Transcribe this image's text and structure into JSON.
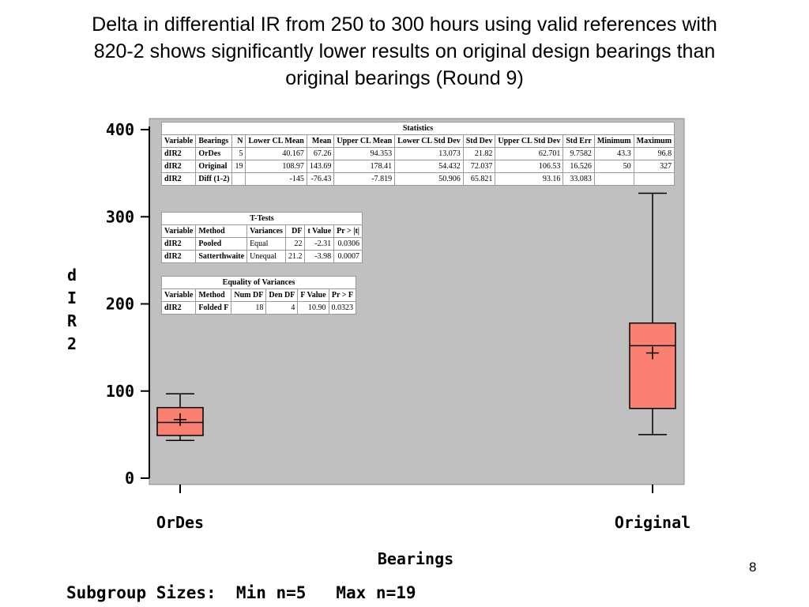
{
  "title_lines": [
    "Delta in differential IR from 250 to 300 hours using valid references with",
    "820-2 shows significantly lower results on original design bearings than",
    "original bearings (Round 9)"
  ],
  "page_number": "8",
  "footer": "Subgroup Sizes:  Min n=5   Max n=19",
  "chart_data": {
    "type": "box",
    "title": "",
    "xlabel": "Bearings",
    "ylabel_chars": [
      "d",
      "I",
      "R",
      "2"
    ],
    "categories": [
      "OrDes",
      "Original"
    ],
    "ylim": [
      0,
      400
    ],
    "yticks": [
      0,
      100,
      200,
      300,
      400
    ],
    "grid": false,
    "boxes": [
      {
        "category": "OrDes",
        "min": 43.3,
        "q1": 49,
        "median": 64,
        "q3": 81,
        "max": 96.8,
        "mean": 67.26
      },
      {
        "category": "Original",
        "min": 50,
        "q1": 80,
        "median": 152,
        "q3": 178,
        "max": 327,
        "mean": 143.69
      }
    ],
    "colors": {
      "box_fill": "#fa8072",
      "plot_bg": "#c0c0c0"
    }
  },
  "tables": {
    "statistics": {
      "caption": "Statistics",
      "headers": [
        "Variable",
        "Bearings",
        "N",
        "Lower CL Mean",
        "Mean",
        "Upper CL Mean",
        "Lower CL Std Dev",
        "Std Dev",
        "Upper CL Std Dev",
        "Std Err",
        "Minimum",
        "Maximum"
      ],
      "rows": [
        [
          "dIR2",
          "OrDes",
          "5",
          "40.167",
          "67.26",
          "94.353",
          "13.073",
          "21.82",
          "62.701",
          "9.7582",
          "43.3",
          "96.8"
        ],
        [
          "dIR2",
          "Original",
          "19",
          "108.97",
          "143.69",
          "178.41",
          "54.432",
          "72.037",
          "106.53",
          "16.526",
          "50",
          "327"
        ],
        [
          "dIR2",
          "Diff (1-2)",
          "",
          "-145",
          "-76.43",
          "-7.819",
          "50.906",
          "65.821",
          "93.16",
          "33.083",
          "",
          ""
        ]
      ]
    },
    "ttests": {
      "caption": "T-Tests",
      "headers": [
        "Variable",
        "Method",
        "Variances",
        "DF",
        "t Value",
        "Pr > |t|"
      ],
      "rows": [
        [
          "dIR2",
          "Pooled",
          "Equal",
          "22",
          "-2.31",
          "0.0306"
        ],
        [
          "dIR2",
          "Satterthwaite",
          "Unequal",
          "21.2",
          "-3.98",
          "0.0007"
        ]
      ]
    },
    "variances": {
      "caption": "Equality of Variances",
      "headers": [
        "Variable",
        "Method",
        "Num DF",
        "Den DF",
        "F Value",
        "Pr > F"
      ],
      "rows": [
        [
          "dIR2",
          "Folded F",
          "18",
          "4",
          "10.90",
          "0.0323"
        ]
      ]
    }
  }
}
